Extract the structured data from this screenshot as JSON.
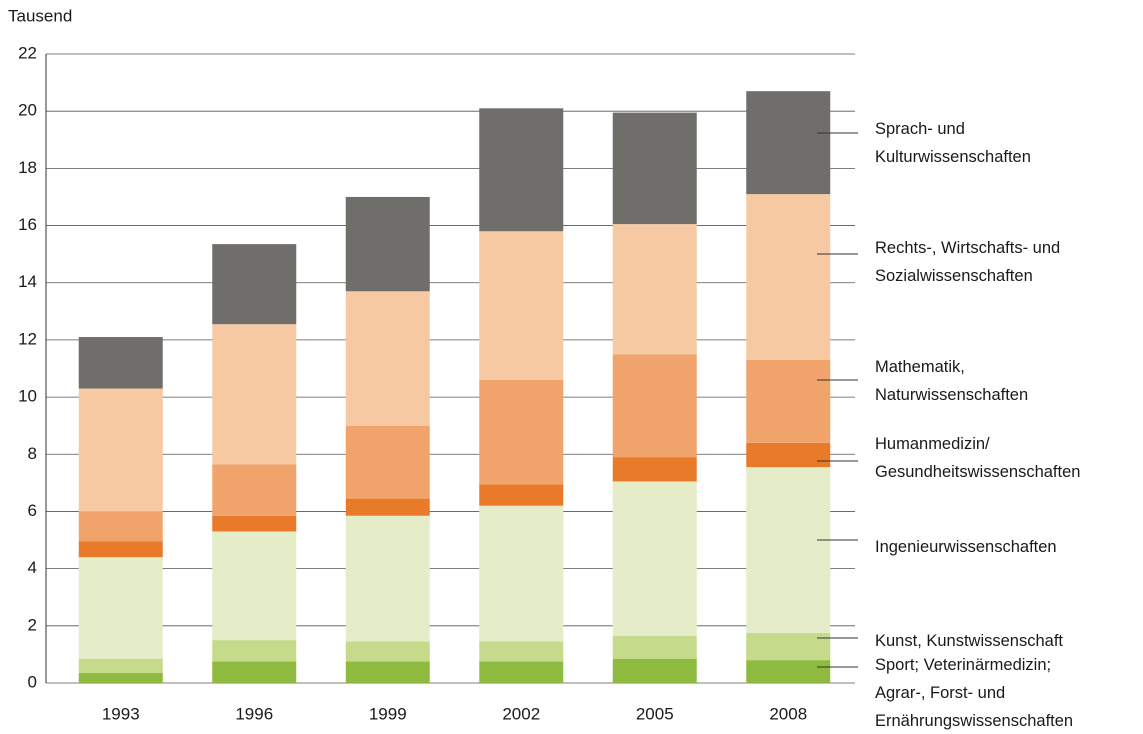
{
  "chart_data": {
    "type": "stacked_bar",
    "y_label": "Tausend",
    "categories": [
      "1993",
      "1996",
      "1999",
      "2002",
      "2005",
      "2008"
    ],
    "series": [
      {
        "name": "Sport; Veterinärmedizin; Agrar-, Forst- und Ernährungswissenschaften",
        "color": "#8dba3f",
        "values": [
          0.35,
          0.75,
          0.75,
          0.75,
          0.85,
          0.8
        ]
      },
      {
        "name": "Kunst, Kunstwissenschaft",
        "color": "#c5da8a",
        "values": [
          0.5,
          0.75,
          0.7,
          0.7,
          0.8,
          0.95
        ]
      },
      {
        "name": "Ingenieurwissenschaften",
        "color": "#e4ecc8",
        "values": [
          3.55,
          3.8,
          4.4,
          4.75,
          5.4,
          5.8
        ]
      },
      {
        "name": "Humanmedizin/ Gesundheitswissenschaften",
        "color": "#e87a2a",
        "values": [
          0.55,
          0.55,
          0.6,
          0.75,
          0.85,
          0.85
        ]
      },
      {
        "name": "Mathematik, Naturwissenschaften",
        "color": "#f0a46b",
        "values": [
          1.05,
          1.8,
          2.55,
          3.65,
          3.6,
          2.9
        ]
      },
      {
        "name": "Rechts-, Wirtschafts- und Sozialwissenschaften",
        "color": "#f6c9a2",
        "values": [
          4.3,
          4.9,
          4.7,
          5.2,
          4.55,
          5.8
        ]
      },
      {
        "name": "Sprach- und Kulturwissenschaften",
        "color": "#6f6e6b",
        "values": [
          1.8,
          2.8,
          3.3,
          4.3,
          3.9,
          3.6
        ]
      }
    ],
    "ylim": [
      0,
      22
    ],
    "yticks": [
      0,
      2,
      4,
      6,
      8,
      10,
      12,
      14,
      16,
      18,
      20,
      22
    ],
    "grid": true
  }
}
